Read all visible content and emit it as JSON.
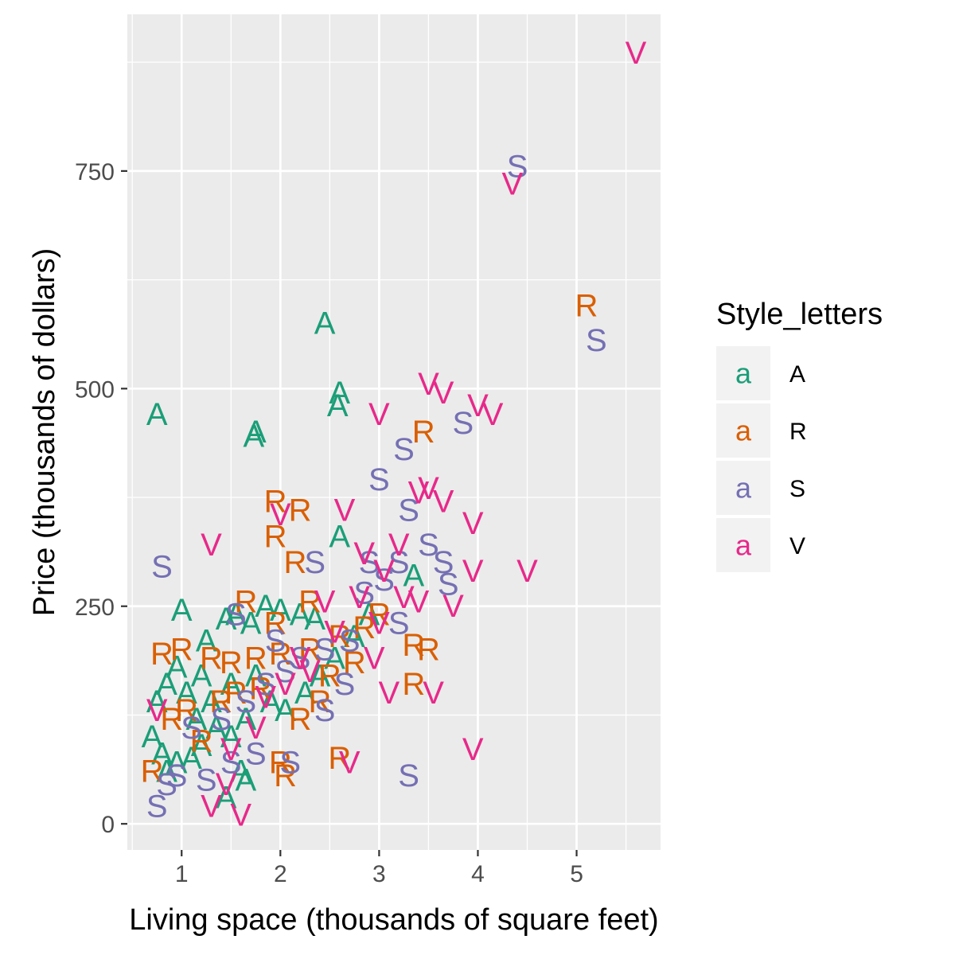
{
  "chart_data": {
    "type": "scatter",
    "title": "",
    "xlabel": "Living space (thousands of square feet)",
    "ylabel": "Price (thousands of dollars)",
    "xlim": [
      0.45,
      5.85
    ],
    "ylim": [
      -30,
      930
    ],
    "x_ticks": [
      1,
      2,
      3,
      4,
      5
    ],
    "y_ticks": [
      0,
      250,
      500,
      750
    ],
    "x_tick_labels": [
      "1",
      "2",
      "3",
      "4",
      "5"
    ],
    "y_tick_labels": [
      "0",
      "250",
      "500",
      "750"
    ],
    "grid": true,
    "background": "#ebebeb",
    "marker": "letter",
    "legend": {
      "title": "Style_letters",
      "position": "right",
      "key_glyph": "a",
      "entries": [
        {
          "label": "A",
          "color": "#1b9e77"
        },
        {
          "label": "R",
          "color": "#d95f02"
        },
        {
          "label": "S",
          "color": "#7570b3"
        },
        {
          "label": "V",
          "color": "#e7298a"
        }
      ]
    },
    "series": [
      {
        "name": "A",
        "color": "#1b9e77",
        "points": [
          [
            0.75,
            470
          ],
          [
            1.75,
            450
          ],
          [
            1.73,
            445
          ],
          [
            2.45,
            575
          ],
          [
            2.6,
            495
          ],
          [
            2.58,
            480
          ],
          [
            2.6,
            330
          ],
          [
            3.35,
            285
          ],
          [
            1.0,
            245
          ],
          [
            1.25,
            210
          ],
          [
            1.45,
            235
          ],
          [
            1.55,
            240
          ],
          [
            1.7,
            230
          ],
          [
            1.85,
            250
          ],
          [
            2.0,
            245
          ],
          [
            2.2,
            240
          ],
          [
            2.35,
            235
          ],
          [
            0.85,
            160
          ],
          [
            0.75,
            140
          ],
          [
            0.7,
            100
          ],
          [
            0.8,
            80
          ],
          [
            0.85,
            60
          ],
          [
            0.95,
            70
          ],
          [
            1.1,
            75
          ],
          [
            1.2,
            90
          ],
          [
            1.35,
            110
          ],
          [
            1.5,
            100
          ],
          [
            1.6,
            60
          ],
          [
            1.65,
            50
          ],
          [
            1.45,
            30
          ],
          [
            1.15,
            120
          ],
          [
            1.3,
            140
          ],
          [
            1.5,
            160
          ],
          [
            1.75,
            170
          ],
          [
            1.9,
            140
          ],
          [
            2.05,
            130
          ],
          [
            2.25,
            150
          ],
          [
            2.4,
            170
          ],
          [
            2.55,
            190
          ],
          [
            2.75,
            215
          ],
          [
            2.9,
            240
          ],
          [
            1.05,
            150
          ],
          [
            0.95,
            180
          ],
          [
            1.2,
            170
          ],
          [
            1.65,
            120
          ]
        ]
      },
      {
        "name": "R",
        "color": "#d95f02",
        "points": [
          [
            5.1,
            595
          ],
          [
            3.45,
            450
          ],
          [
            1.95,
            370
          ],
          [
            2.2,
            360
          ],
          [
            1.95,
            330
          ],
          [
            2.15,
            300
          ],
          [
            3.5,
            200
          ],
          [
            3.35,
            205
          ],
          [
            3.35,
            160
          ],
          [
            2.6,
            75
          ],
          [
            0.8,
            195
          ],
          [
            1.0,
            200
          ],
          [
            1.3,
            190
          ],
          [
            1.5,
            185
          ],
          [
            1.75,
            190
          ],
          [
            2.0,
            195
          ],
          [
            2.3,
            200
          ],
          [
            2.6,
            215
          ],
          [
            2.85,
            225
          ],
          [
            3.0,
            240
          ],
          [
            0.7,
            60
          ],
          [
            0.9,
            120
          ],
          [
            1.05,
            130
          ],
          [
            1.2,
            95
          ],
          [
            1.4,
            140
          ],
          [
            1.55,
            150
          ],
          [
            1.8,
            155
          ],
          [
            2.0,
            70
          ],
          [
            2.05,
            55
          ],
          [
            2.2,
            120
          ],
          [
            2.5,
            170
          ],
          [
            2.75,
            185
          ],
          [
            1.95,
            230
          ],
          [
            2.3,
            255
          ],
          [
            1.65,
            255
          ],
          [
            2.4,
            140
          ]
        ]
      },
      {
        "name": "S",
        "color": "#7570b3",
        "points": [
          [
            4.4,
            755
          ],
          [
            5.2,
            555
          ],
          [
            3.85,
            460
          ],
          [
            3.25,
            430
          ],
          [
            3.0,
            395
          ],
          [
            0.8,
            295
          ],
          [
            3.3,
            360
          ],
          [
            3.5,
            320
          ],
          [
            3.65,
            300
          ],
          [
            3.7,
            275
          ],
          [
            3.2,
            230
          ],
          [
            3.3,
            55
          ],
          [
            0.75,
            20
          ],
          [
            0.85,
            45
          ],
          [
            0.95,
            55
          ],
          [
            1.25,
            50
          ],
          [
            1.5,
            70
          ],
          [
            1.75,
            80
          ],
          [
            2.1,
            70
          ],
          [
            1.1,
            110
          ],
          [
            1.4,
            120
          ],
          [
            1.65,
            140
          ],
          [
            1.85,
            160
          ],
          [
            2.05,
            175
          ],
          [
            2.2,
            190
          ],
          [
            2.45,
            200
          ],
          [
            2.7,
            210
          ],
          [
            2.85,
            265
          ],
          [
            3.05,
            280
          ],
          [
            3.2,
            300
          ],
          [
            2.45,
            130
          ],
          [
            2.65,
            160
          ],
          [
            2.35,
            300
          ],
          [
            1.55,
            240
          ],
          [
            1.95,
            210
          ],
          [
            2.9,
            300
          ]
        ]
      },
      {
        "name": "V",
        "color": "#e7298a",
        "points": [
          [
            5.6,
            885
          ],
          [
            4.35,
            735
          ],
          [
            3.5,
            505
          ],
          [
            3.65,
            495
          ],
          [
            4.0,
            480
          ],
          [
            4.15,
            470
          ],
          [
            3.0,
            470
          ],
          [
            3.5,
            385
          ],
          [
            3.4,
            380
          ],
          [
            3.65,
            370
          ],
          [
            2.65,
            360
          ],
          [
            1.3,
            320
          ],
          [
            2.0,
            355
          ],
          [
            3.95,
            345
          ],
          [
            3.95,
            290
          ],
          [
            4.5,
            290
          ],
          [
            3.75,
            250
          ],
          [
            3.4,
            255
          ],
          [
            3.0,
            230
          ],
          [
            2.95,
            190
          ],
          [
            3.1,
            150
          ],
          [
            3.55,
            150
          ],
          [
            3.95,
            85
          ],
          [
            2.7,
            70
          ],
          [
            1.6,
            10
          ],
          [
            1.3,
            20
          ],
          [
            1.45,
            45
          ],
          [
            0.75,
            130
          ],
          [
            2.2,
            190
          ],
          [
            2.55,
            220
          ],
          [
            2.8,
            260
          ],
          [
            3.05,
            290
          ],
          [
            3.2,
            320
          ],
          [
            2.85,
            310
          ],
          [
            2.45,
            255
          ],
          [
            2.3,
            175
          ],
          [
            2.05,
            160
          ],
          [
            1.85,
            145
          ],
          [
            1.75,
            110
          ],
          [
            1.5,
            85
          ],
          [
            3.25,
            260
          ]
        ]
      }
    ]
  }
}
